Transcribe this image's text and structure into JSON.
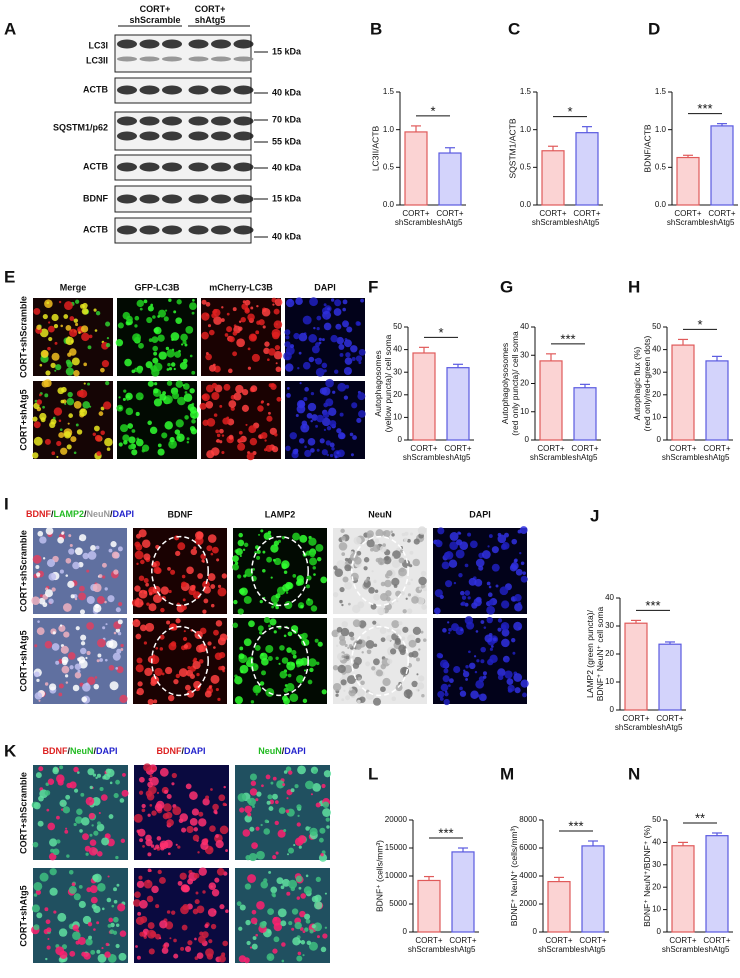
{
  "panel_letters": [
    "A",
    "B",
    "C",
    "D",
    "E",
    "F",
    "G",
    "H",
    "I",
    "J",
    "K",
    "L",
    "M",
    "N"
  ],
  "blot": {
    "headers": [
      "CORT+ shScramble",
      "CORT+ shAtg5"
    ],
    "rows": [
      {
        "labels": [
          "LC3I",
          "LC3II"
        ],
        "markers": [
          "15 kDa"
        ]
      },
      {
        "labels": [
          "ACTB"
        ],
        "markers": [
          "40 kDa"
        ]
      },
      {
        "labels": [
          "SQSTM1/p62"
        ],
        "markers": [
          "70 kDa",
          "55 kDa"
        ]
      },
      {
        "labels": [
          "ACTB"
        ],
        "markers": [
          "40 kDa"
        ]
      },
      {
        "labels": [
          "BDNF"
        ],
        "markers": [
          "15 kDa"
        ]
      },
      {
        "labels": [
          "ACTB"
        ],
        "markers": [
          "40 kDa"
        ]
      }
    ]
  },
  "images_E": {
    "columns": [
      {
        "text": "Merge",
        "color": "#111111"
      },
      {
        "text": "GFP-LC3B",
        "color": "#22bb22"
      },
      {
        "text": "mCherry-LC3B",
        "color": "#dd2222"
      },
      {
        "text": "DAPI",
        "color": "#2222cc"
      }
    ],
    "rows": [
      "CORT+shScramble",
      "CORT+shAtg5"
    ]
  },
  "images_I": {
    "first_column_parts": [
      {
        "text": "BDNF",
        "color": "#dd2222"
      },
      {
        "text": "/",
        "color": "#111111"
      },
      {
        "text": "LAMP2",
        "color": "#22bb22"
      },
      {
        "text": "/",
        "color": "#111111"
      },
      {
        "text": "NeuN",
        "color": "#999999"
      },
      {
        "text": "/",
        "color": "#111111"
      },
      {
        "text": "DAPI",
        "color": "#2222cc"
      }
    ],
    "columns": [
      {
        "text": "BDNF",
        "color": "#dd2222"
      },
      {
        "text": "LAMP2",
        "color": "#22bb22"
      },
      {
        "text": "NeuN",
        "color": "#999999"
      },
      {
        "text": "DAPI",
        "color": "#2222cc"
      }
    ],
    "rows": [
      "CORT+shScramble",
      "CORT+shAtg5"
    ]
  },
  "images_K": {
    "columns": [
      [
        {
          "text": "BDNF",
          "color": "#dd2222"
        },
        {
          "text": "/",
          "color": "#111111"
        },
        {
          "text": "NeuN",
          "color": "#22bb22"
        },
        {
          "text": "/",
          "color": "#111111"
        },
        {
          "text": "DAPI",
          "color": "#2222cc"
        }
      ],
      [
        {
          "text": "BDNF",
          "color": "#dd2222"
        },
        {
          "text": "/",
          "color": "#111111"
        },
        {
          "text": "DAPI",
          "color": "#2222cc"
        }
      ],
      [
        {
          "text": "NeuN",
          "color": "#22bb22"
        },
        {
          "text": "/",
          "color": "#111111"
        },
        {
          "text": "DAPI",
          "color": "#2222cc"
        }
      ]
    ],
    "rows": [
      "CORT+shScramble",
      "CORT+shAtg5"
    ]
  },
  "chart_data": [
    {
      "type": "bar",
      "ylabel": [
        "LC3II/ACTB"
      ],
      "categories": [
        "CORT+ shScramble",
        "CORT+ shAtg5"
      ],
      "values": [
        0.97,
        0.69
      ],
      "errors": [
        0.08,
        0.07
      ],
      "colors": [
        "#fbd3d3",
        "#d3d3fb"
      ],
      "edge_colors": [
        "#e05a5a",
        "#5a5ae0"
      ],
      "ylim": [
        0,
        1.5
      ],
      "yticks": [
        {
          "value": 0,
          "label": "0.0"
        },
        0.5,
        {
          "value": 1,
          "label": "1.0"
        },
        1.5
      ],
      "annotation": "*"
    },
    {
      "type": "bar",
      "ylabel": [
        "SQSTM1/ACTB"
      ],
      "categories": [
        "CORT+ shScramble",
        "CORT+ shAtg5"
      ],
      "values": [
        0.72,
        0.96
      ],
      "errors": [
        0.06,
        0.08
      ],
      "colors": [
        "#fbd3d3",
        "#d3d3fb"
      ],
      "edge_colors": [
        "#e05a5a",
        "#5a5ae0"
      ],
      "ylim": [
        0,
        1.5
      ],
      "yticks": [
        {
          "value": 0,
          "label": "0.0"
        },
        0.5,
        {
          "value": 1,
          "label": "1.0"
        },
        1.5
      ],
      "annotation": "*"
    },
    {
      "type": "bar",
      "ylabel": [
        "BDNF/ACTB"
      ],
      "categories": [
        "CORT+ shScramble",
        "CORT+ shAtg5"
      ],
      "values": [
        0.63,
        1.05
      ],
      "errors": [
        0.03,
        0.03
      ],
      "colors": [
        "#fbd3d3",
        "#d3d3fb"
      ],
      "edge_colors": [
        "#e05a5a",
        "#5a5ae0"
      ],
      "ylim": [
        0,
        1.5
      ],
      "yticks": [
        {
          "value": 0,
          "label": "0.0"
        },
        0.5,
        {
          "value": 1,
          "label": "1.0"
        },
        1.5
      ],
      "annotation": "***"
    },
    {
      "type": "bar",
      "ylabel": [
        "Autophagosomes",
        "(yellow puncta)/ cell soma"
      ],
      "categories": [
        "CORT+ shScramble",
        "CORT+ shAtg5"
      ],
      "values": [
        38.5,
        32
      ],
      "errors": [
        2.5,
        1.5
      ],
      "colors": [
        "#fbd3d3",
        "#d3d3fb"
      ],
      "edge_colors": [
        "#e05a5a",
        "#5a5ae0"
      ],
      "ylim": [
        0,
        50
      ],
      "yticks": [
        0,
        10,
        20,
        30,
        40,
        50
      ],
      "annotation": "*"
    },
    {
      "type": "bar",
      "ylabel": [
        "Autophagolysosomes",
        "(red only puncta)/ cell soma"
      ],
      "categories": [
        "CORT+ shScramble",
        "CORT+ shAtg5"
      ],
      "values": [
        28,
        18.5
      ],
      "errors": [
        2.5,
        1.2
      ],
      "colors": [
        "#fbd3d3",
        "#d3d3fb"
      ],
      "edge_colors": [
        "#e05a5a",
        "#5a5ae0"
      ],
      "ylim": [
        0,
        40
      ],
      "yticks": [
        0,
        10,
        20,
        30,
        40
      ],
      "annotation": "***"
    },
    {
      "type": "bar",
      "ylabel": [
        "Autophagic flux (%)",
        "(red only/red+green dots)"
      ],
      "categories": [
        "CORT+ shScramble",
        "CORT+ shAtg5"
      ],
      "values": [
        42,
        35
      ],
      "errors": [
        2.5,
        2
      ],
      "colors": [
        "#fbd3d3",
        "#d3d3fb"
      ],
      "edge_colors": [
        "#e05a5a",
        "#5a5ae0"
      ],
      "ylim": [
        0,
        50
      ],
      "yticks": [
        0,
        10,
        20,
        30,
        40,
        50
      ],
      "annotation": "*"
    },
    {
      "type": "bar",
      "ylabel": [
        "LAMP2 (green puncta)/",
        "BDNF⁺ NeuN⁺ cell soma"
      ],
      "categories": [
        "CORT+ shScramble",
        "CORT+ shAtg5"
      ],
      "values": [
        31,
        23.5
      ],
      "errors": [
        1,
        0.8
      ],
      "colors": [
        "#fbd3d3",
        "#d3d3fb"
      ],
      "edge_colors": [
        "#e05a5a",
        "#5a5ae0"
      ],
      "ylim": [
        0,
        40
      ],
      "yticks": [
        0,
        10,
        20,
        30,
        40
      ],
      "annotation": "***"
    },
    {
      "type": "bar",
      "ylabel": [
        "BDNF⁺ (cells/mm³)"
      ],
      "categories": [
        "CORT+ shScramble",
        "CORT+ shAtg5"
      ],
      "values": [
        9200,
        14300
      ],
      "errors": [
        700,
        700
      ],
      "colors": [
        "#fbd3d3",
        "#d3d3fb"
      ],
      "edge_colors": [
        "#e05a5a",
        "#5a5ae0"
      ],
      "ylim": [
        0,
        20000
      ],
      "yticks": [
        0,
        5000,
        10000,
        15000,
        20000
      ],
      "annotation": "***"
    },
    {
      "type": "bar",
      "ylabel": [
        "BDNF⁺ NeuN⁺ (cells/mm³)"
      ],
      "categories": [
        "CORT+ shScramble",
        "CORT+ shAtg5"
      ],
      "values": [
        3600,
        6150
      ],
      "errors": [
        300,
        350
      ],
      "colors": [
        "#fbd3d3",
        "#d3d3fb"
      ],
      "edge_colors": [
        "#e05a5a",
        "#5a5ae0"
      ],
      "ylim": [
        0,
        8000
      ],
      "yticks": [
        0,
        2000,
        4000,
        6000,
        8000
      ],
      "annotation": "***"
    },
    {
      "type": "bar",
      "ylabel": [
        "BDNF⁺ NeuN⁺/BDNF⁺ (%)"
      ],
      "categories": [
        "CORT+ shScramble",
        "CORT+ shAtg5"
      ],
      "values": [
        38.5,
        43
      ],
      "errors": [
        1.5,
        1.2
      ],
      "colors": [
        "#fbd3d3",
        "#d3d3fb"
      ],
      "edge_colors": [
        "#e05a5a",
        "#5a5ae0"
      ],
      "ylim": [
        0,
        50
      ],
      "yticks": [
        0,
        10,
        20,
        30,
        40,
        50
      ],
      "annotation": "**"
    }
  ]
}
